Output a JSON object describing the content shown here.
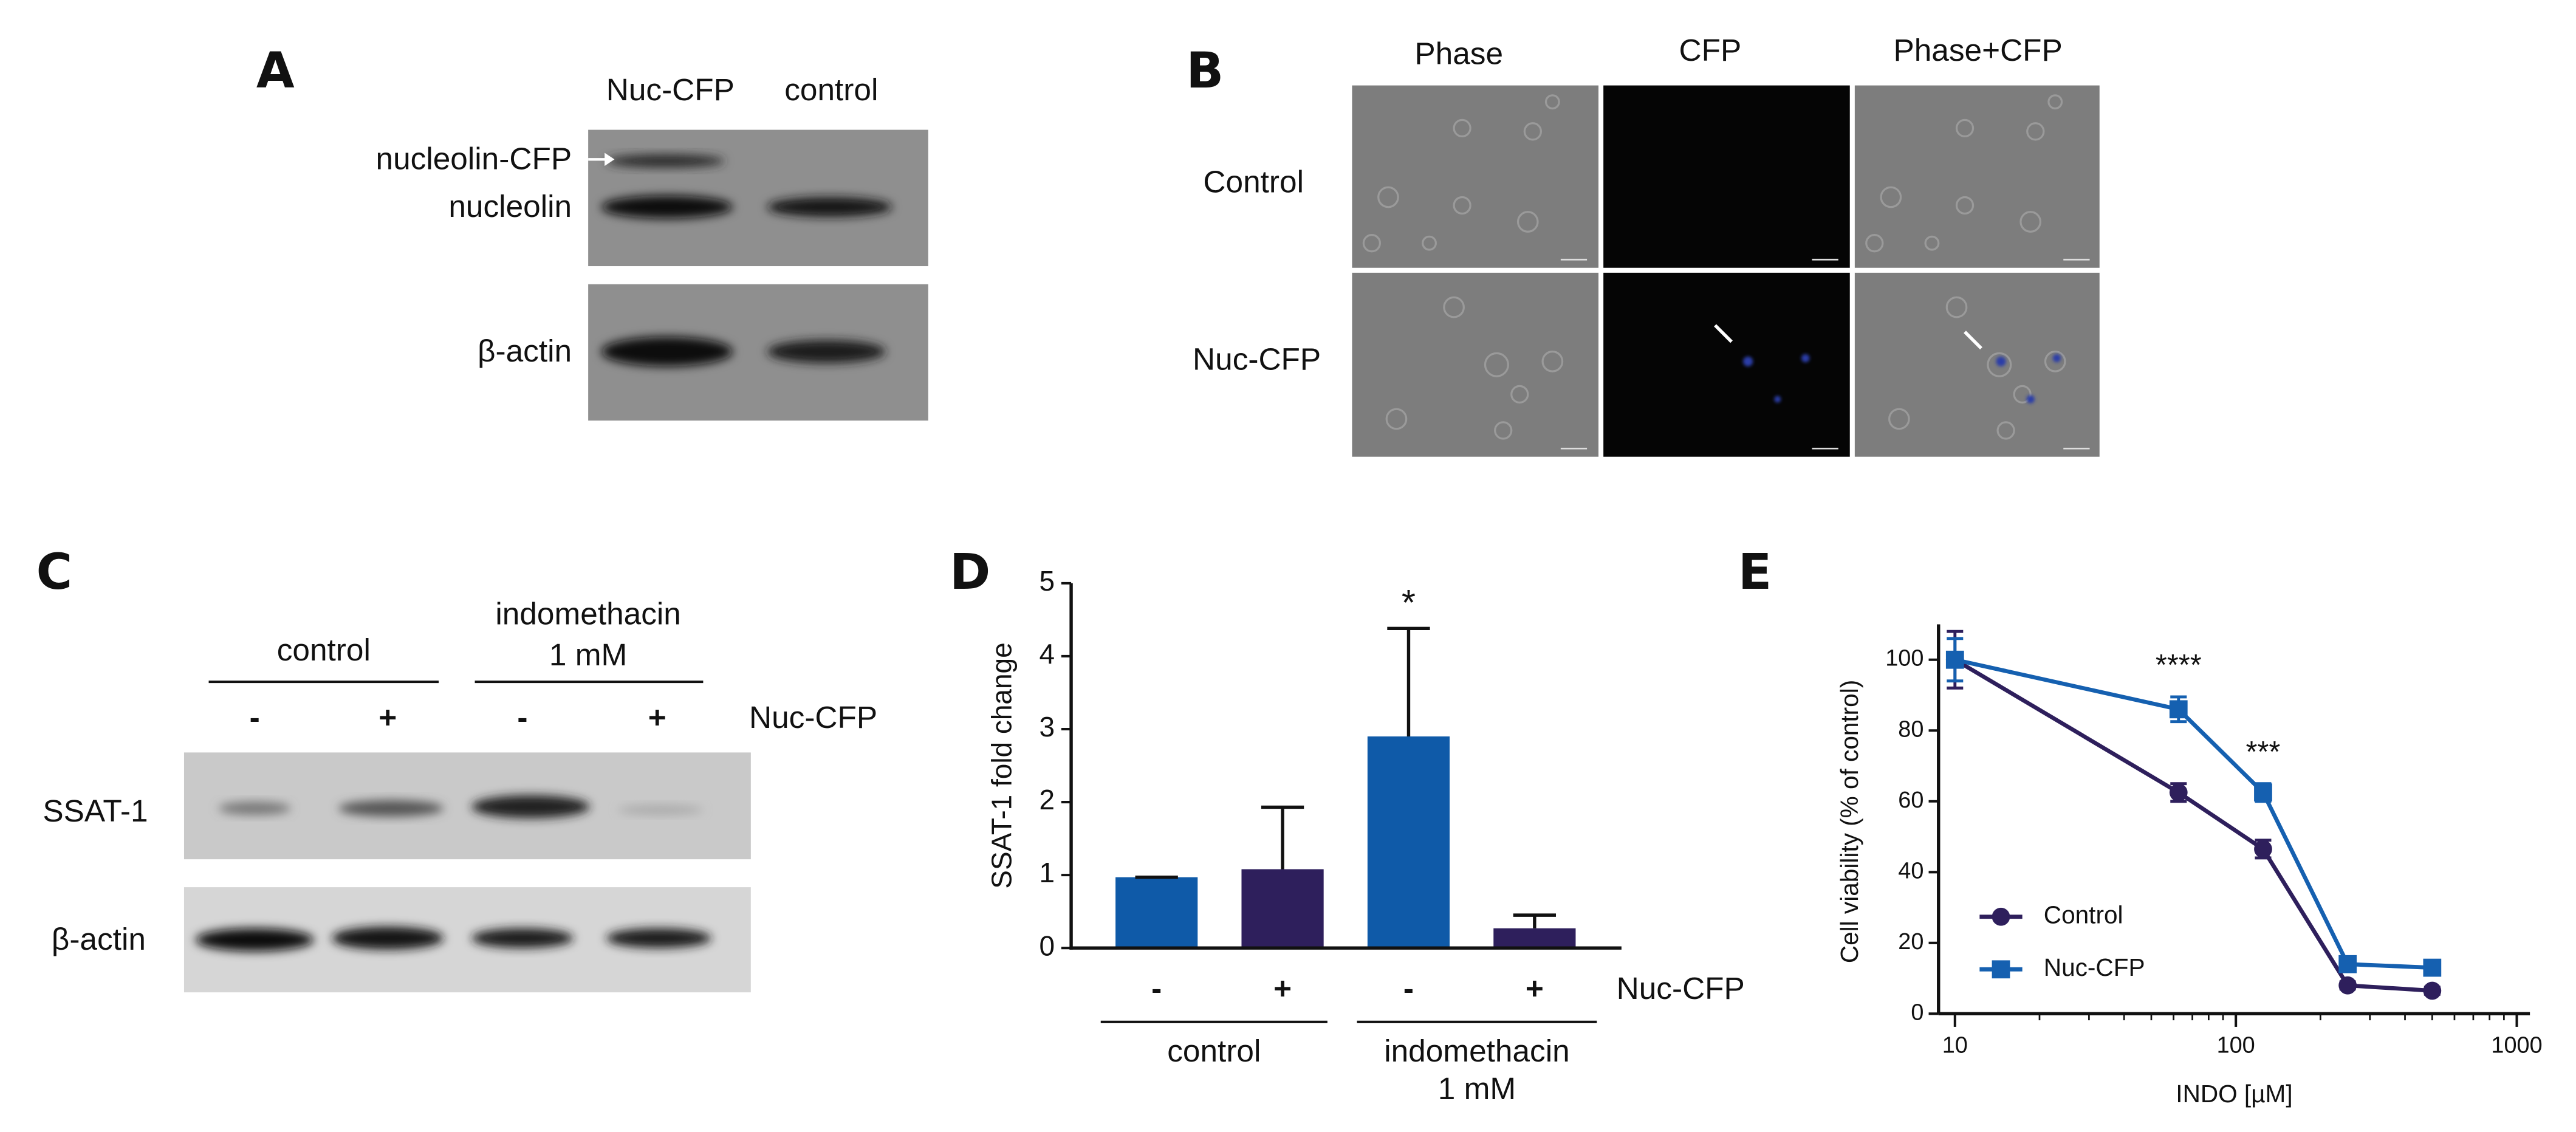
{
  "panels": {
    "A": {
      "label": "A",
      "lanes": [
        "Nuc-CFP",
        "control"
      ],
      "bands": [
        "nucleolin-CFP",
        "nucleolin",
        "β-actin"
      ]
    },
    "B": {
      "label": "B",
      "columns": [
        "Phase",
        "CFP",
        "Phase+CFP"
      ],
      "rows": [
        "Control",
        "Nuc-CFP"
      ]
    },
    "C": {
      "label": "C",
      "groups": [
        [
          "control"
        ],
        [
          "indomethacin",
          "1 mM"
        ]
      ],
      "lanes": [
        "-",
        "+",
        "-",
        "+"
      ],
      "lane_label": "Nuc-CFP",
      "bands": [
        "SSAT-1",
        "β-actin"
      ]
    }
  },
  "chart_data": [
    {
      "type": "bar",
      "panel_label": "D",
      "y_label": "SSAT-1 fold change",
      "categories": [
        "-",
        "+",
        "-",
        "+"
      ],
      "values": [
        0.97,
        1.08,
        2.9,
        0.27
      ],
      "errors": [
        0,
        0.85,
        1.48,
        0.18
      ],
      "significance": [
        null,
        null,
        "*",
        null
      ],
      "colors": [
        "#0f5aa8",
        "#2e1f5c",
        "#0f5aa8",
        "#2e1f5c"
      ],
      "lane_label": "Nuc-CFP",
      "groups": [
        [
          "control"
        ],
        [
          "indomethacin",
          "1 mM"
        ]
      ],
      "ylim": [
        0,
        5
      ],
      "yticks": [
        0,
        1,
        2,
        3,
        4,
        5
      ]
    },
    {
      "type": "line",
      "panel_label": "E",
      "x_label": "INDO [µM]",
      "y_label": "Cell viability (% of control)",
      "log_x": true,
      "x": [
        10,
        62.5,
        125,
        250,
        500
      ],
      "series": [
        {
          "name": "Control",
          "color": "#2e1f5c",
          "marker": "circle",
          "values": [
            100,
            62.5,
            46.5,
            8,
            6.5
          ],
          "errors": [
            8,
            2.5,
            2.5,
            1,
            1
          ],
          "significance": [
            null,
            null,
            null,
            null,
            null
          ]
        },
        {
          "name": "Nuc-CFP",
          "color": "#1560b0",
          "marker": "square",
          "values": [
            100,
            86,
            62.5,
            14,
            13
          ],
          "errors": [
            6,
            3.5,
            2.5,
            1,
            1
          ],
          "significance": [
            null,
            "****",
            "***",
            null,
            null
          ]
        }
      ],
      "xlim": [
        10,
        1000
      ],
      "xticks": [
        10,
        100,
        1000
      ],
      "xminor_ticks": [
        20,
        30,
        40,
        50,
        60,
        70,
        80,
        90,
        200,
        300,
        400,
        500,
        600,
        700,
        800,
        900
      ],
      "ylim": [
        0,
        110
      ],
      "yticks": [
        0,
        20,
        40,
        60,
        80,
        100
      ],
      "legend": "lower-left"
    }
  ]
}
